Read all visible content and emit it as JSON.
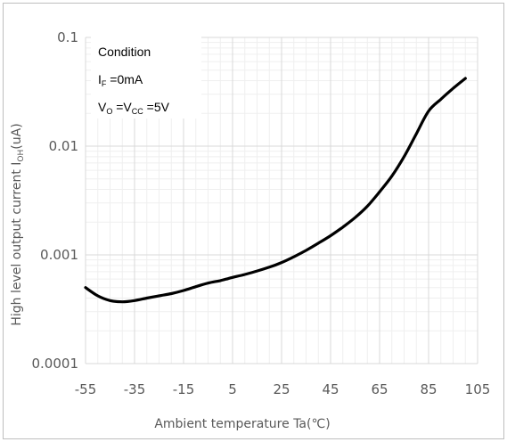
{
  "chart_data": {
    "type": "line",
    "title": "",
    "xlabel": "Ambient temperature Ta(℃)",
    "ylabel": "High level output current I",
    "ylabel_subscript": "OH",
    "ylabel_suffix": "(uA)",
    "xscale": "linear",
    "yscale": "log",
    "xlim": [
      -55,
      105
    ],
    "ylim": [
      0.0001,
      0.1
    ],
    "xticks": [
      -55,
      -35,
      -15,
      5,
      25,
      45,
      65,
      85,
      105
    ],
    "xtick_labels": [
      "-55",
      "-35",
      "-15",
      "5",
      "25",
      "45",
      "65",
      "85",
      "105"
    ],
    "yticks": [
      0.0001,
      0.001,
      0.01,
      0.1
    ],
    "ytick_labels": [
      "0.0001",
      "0.001",
      "0.01",
      "0.1"
    ],
    "grid": true,
    "legend": "none",
    "series": [
      {
        "color": "#000000",
        "x": [
          -55,
          -50,
          -45,
          -40,
          -35,
          -30,
          -25,
          -20,
          -15,
          -10,
          -5,
          0,
          5,
          10,
          15,
          20,
          25,
          30,
          35,
          40,
          45,
          50,
          55,
          60,
          65,
          70,
          75,
          80,
          85,
          90,
          95,
          100
        ],
        "y": [
          0.0005,
          0.00042,
          0.00038,
          0.00037,
          0.00038,
          0.0004,
          0.00042,
          0.00044,
          0.00047,
          0.00051,
          0.00055,
          0.00058,
          0.00062,
          0.00066,
          0.00071,
          0.00077,
          0.00085,
          0.00096,
          0.0011,
          0.00128,
          0.0015,
          0.0018,
          0.0022,
          0.0028,
          0.0038,
          0.0053,
          0.008,
          0.013,
          0.021,
          0.027,
          0.034,
          0.042
        ]
      }
    ],
    "annotation": {
      "heading": "Condition",
      "line1": {
        "main": "I",
        "sub": "F",
        "rest": " =0mA"
      },
      "line2": {
        "v1": "V",
        "sub1": "O",
        "eq1": " =V",
        "sub2": "CC",
        "rest": " =5V"
      }
    }
  }
}
